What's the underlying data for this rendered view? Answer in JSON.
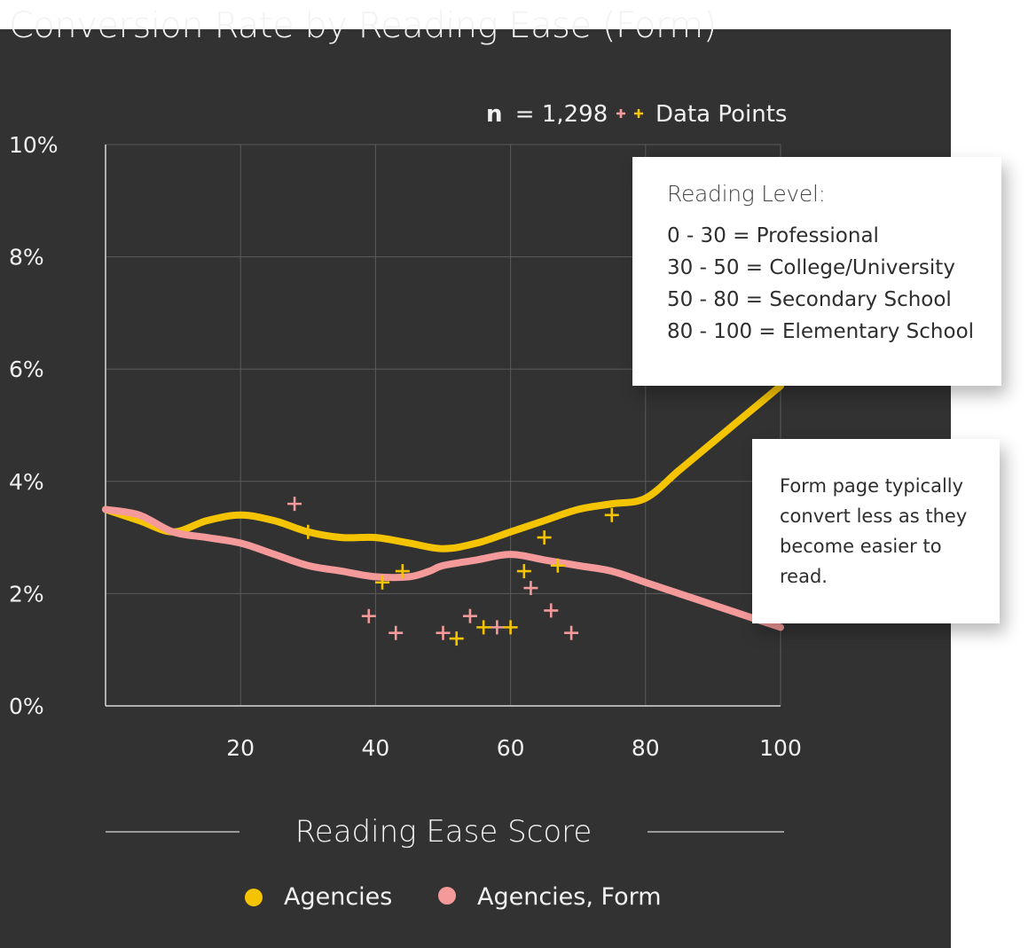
{
  "title": "Conversion Rate by Reading Ease (Form)",
  "sample": {
    "label": "n",
    "value": "= 1,298"
  },
  "data_points_label": "Data Points",
  "reading_level_box": {
    "heading": "Reading Level:",
    "rows": [
      "0 - 30 = Professional",
      "30 - 50 = College/University",
      "50 - 80 = Secondary School",
      "80 - 100 = Elementary School"
    ]
  },
  "note": "Form page typically convert less as they become easier to read.",
  "colors": {
    "agencies": "#f5c400",
    "agencies_form": "#f59a9a",
    "background": "#323232"
  },
  "chart_data": {
    "type": "line",
    "xlabel": "Reading Ease Score",
    "ylabel": "",
    "xlim": [
      0,
      100
    ],
    "ylim": [
      0,
      10
    ],
    "x_ticks": [
      "20",
      "40",
      "60",
      "80",
      "100"
    ],
    "y_ticks": [
      "0%",
      "2%",
      "4%",
      "6%",
      "8%",
      "10%"
    ],
    "y_tick_values": [
      0,
      2,
      4,
      6,
      8,
      10
    ],
    "x_tick_values": [
      20,
      40,
      60,
      80,
      100
    ],
    "grid": true,
    "legend_position": "bottom",
    "series": [
      {
        "name": "Agencies",
        "color": "#f5c400",
        "x": [
          0,
          5,
          10,
          15,
          20,
          25,
          30,
          35,
          40,
          45,
          50,
          55,
          60,
          65,
          70,
          75,
          80,
          85,
          90,
          95,
          100
        ],
        "y": [
          3.5,
          3.3,
          3.1,
          3.3,
          3.4,
          3.3,
          3.1,
          3.0,
          3.0,
          2.9,
          2.8,
          2.9,
          3.1,
          3.3,
          3.5,
          3.6,
          3.7,
          4.2,
          4.7,
          5.2,
          5.7
        ]
      },
      {
        "name": "Agencies, Form",
        "color": "#f59a9a",
        "x": [
          0,
          5,
          10,
          15,
          20,
          25,
          30,
          35,
          40,
          45,
          48,
          50,
          55,
          60,
          65,
          70,
          75,
          80,
          85,
          90,
          95,
          100
        ],
        "y": [
          3.5,
          3.4,
          3.1,
          3.0,
          2.9,
          2.7,
          2.5,
          2.4,
          2.3,
          2.3,
          2.4,
          2.5,
          2.6,
          2.7,
          2.6,
          2.5,
          2.4,
          2.2,
          2.0,
          1.8,
          1.6,
          1.4
        ]
      }
    ],
    "data_points": {
      "agencies": [
        {
          "x": 30,
          "y": 3.1
        },
        {
          "x": 41,
          "y": 2.2
        },
        {
          "x": 44,
          "y": 2.4
        },
        {
          "x": 52,
          "y": 1.2
        },
        {
          "x": 56,
          "y": 1.4
        },
        {
          "x": 60,
          "y": 1.4
        },
        {
          "x": 62,
          "y": 2.4
        },
        {
          "x": 65,
          "y": 3.0
        },
        {
          "x": 67,
          "y": 2.5
        },
        {
          "x": 75,
          "y": 3.4
        }
      ],
      "agencies_form": [
        {
          "x": 28,
          "y": 3.6
        },
        {
          "x": 39,
          "y": 1.6
        },
        {
          "x": 43,
          "y": 1.3
        },
        {
          "x": 50,
          "y": 1.3
        },
        {
          "x": 54,
          "y": 1.6
        },
        {
          "x": 58,
          "y": 1.4
        },
        {
          "x": 63,
          "y": 2.1
        },
        {
          "x": 66,
          "y": 1.7
        },
        {
          "x": 69,
          "y": 1.3
        }
      ]
    }
  }
}
